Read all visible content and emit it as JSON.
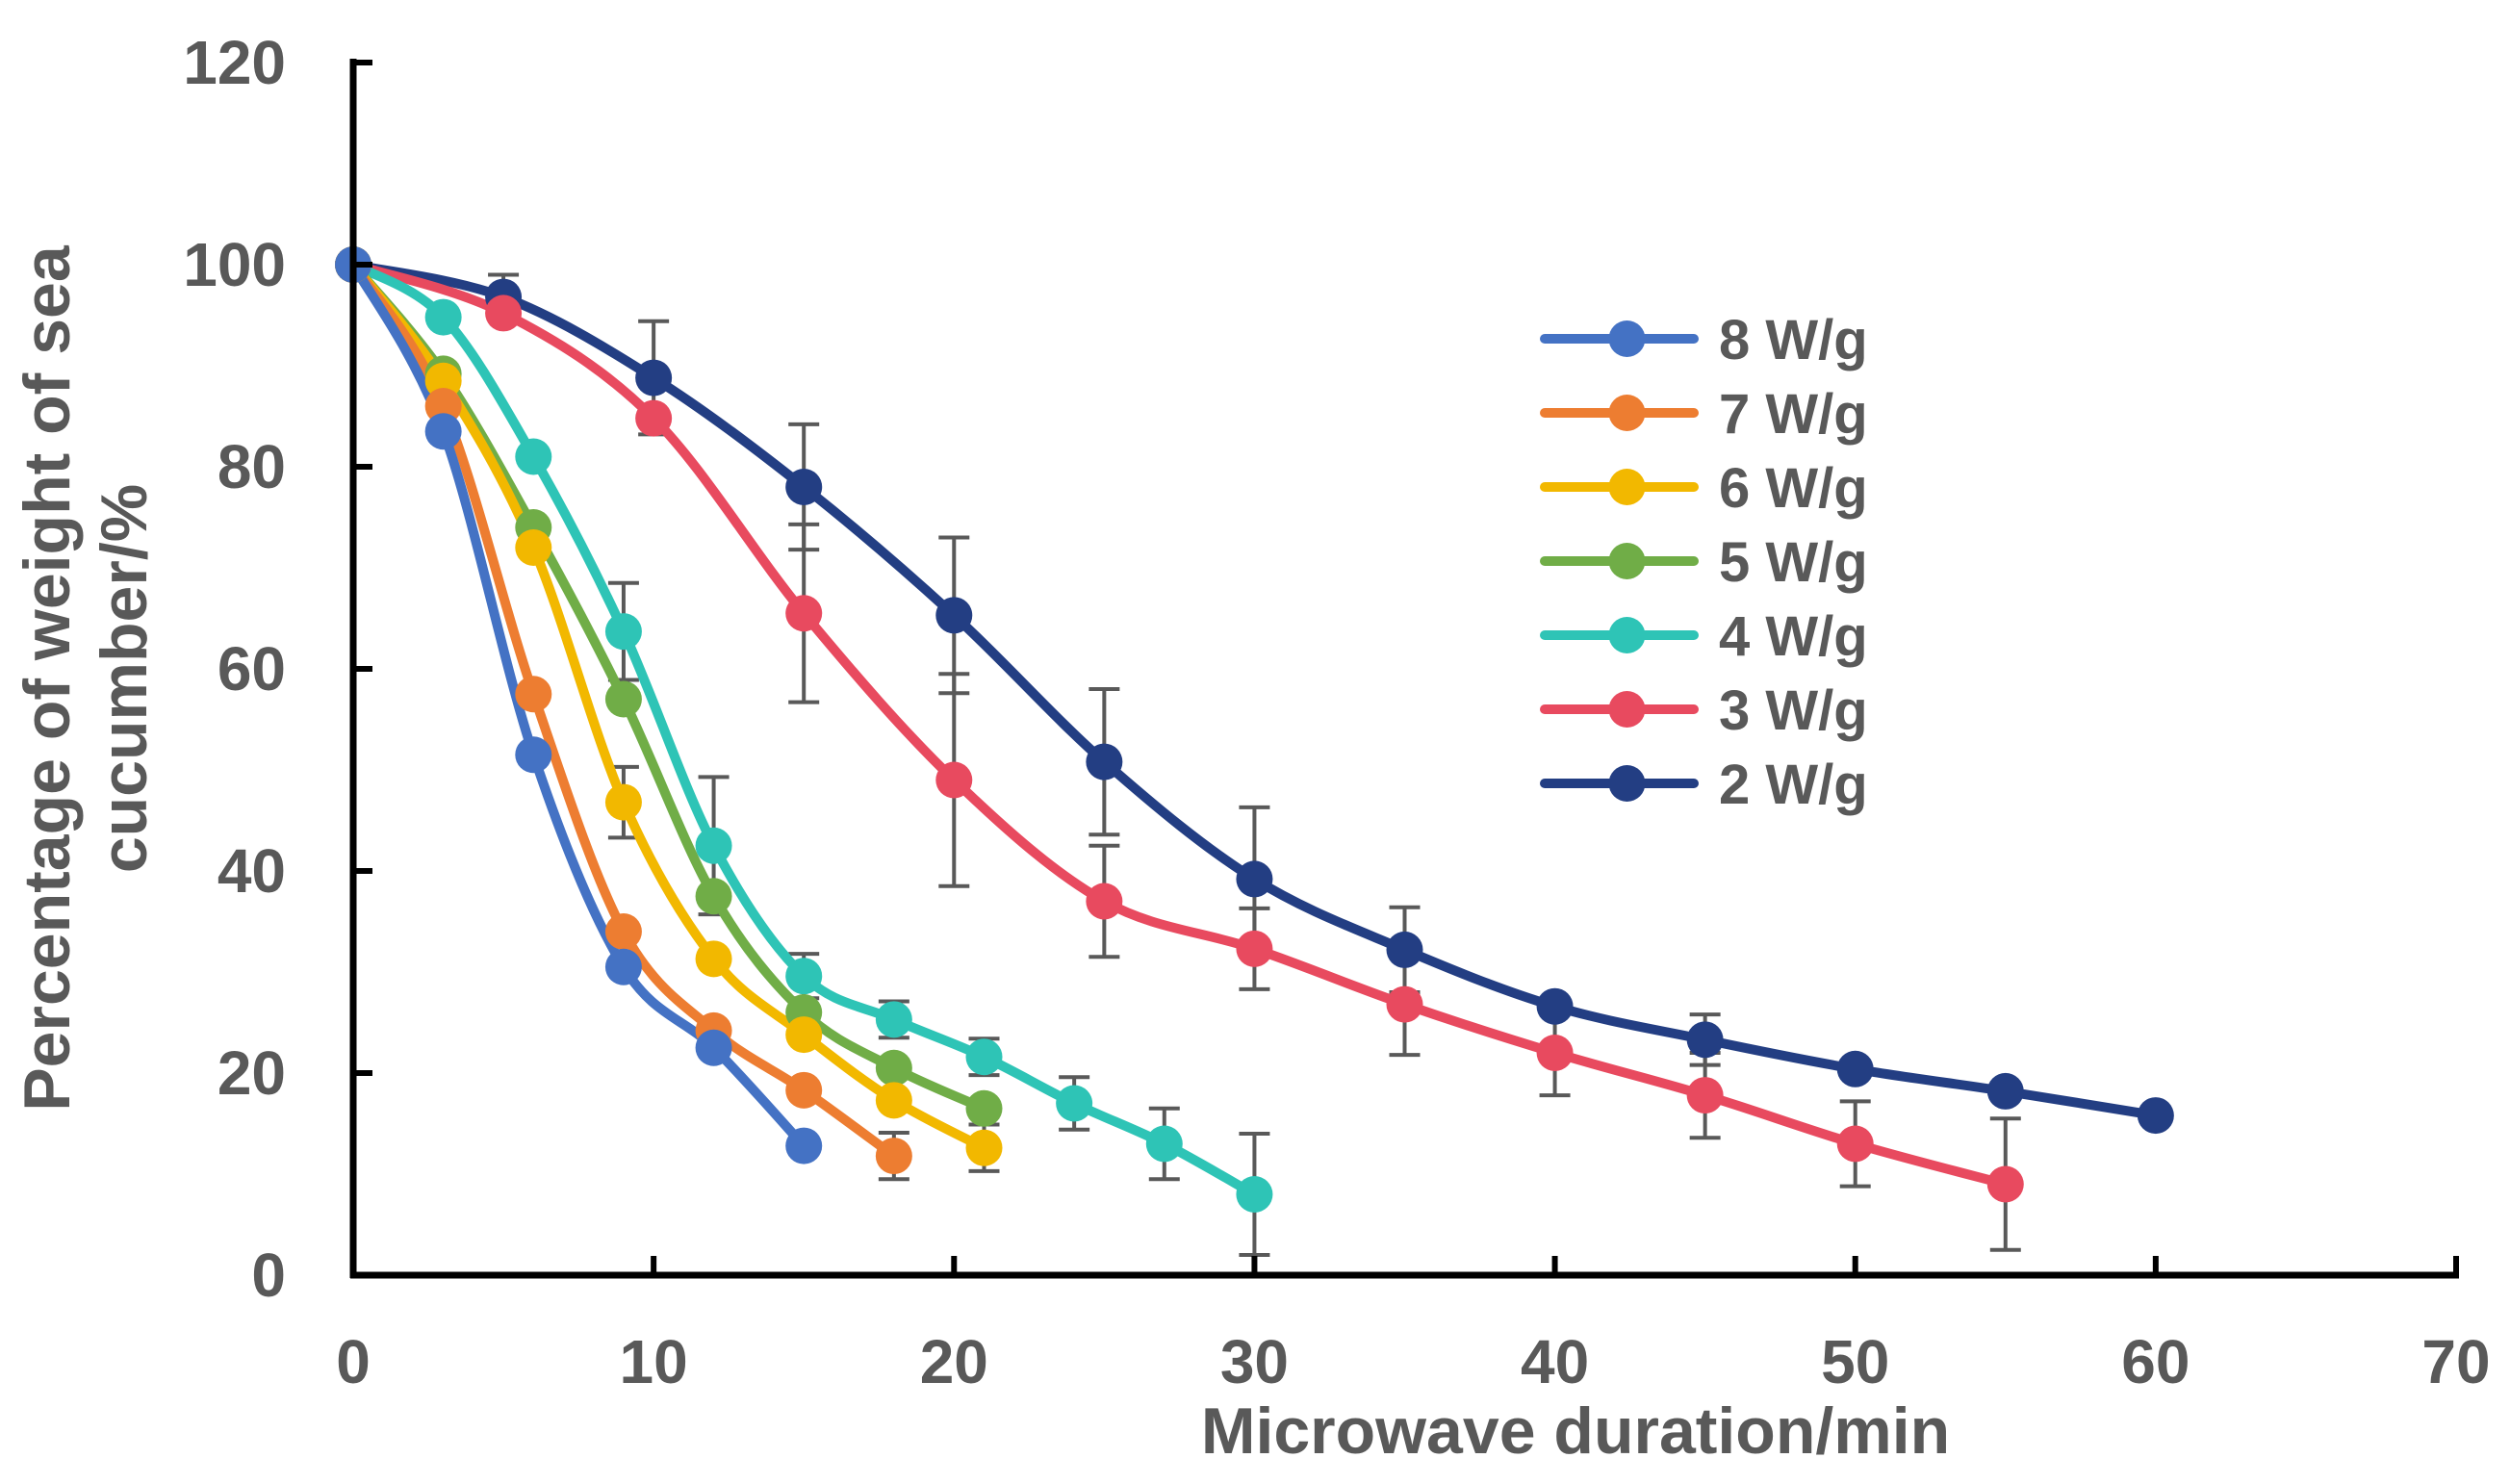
{
  "chart_data": {
    "type": "line",
    "title": "",
    "xlabel": "Microwave duration/min",
    "ylabel_lines": [
      "Percentage of weight of sea",
      "cucumber/%"
    ],
    "xlim": [
      0,
      70
    ],
    "ylim": [
      0,
      120
    ],
    "xticks": [
      0,
      10,
      20,
      30,
      40,
      50,
      60,
      70
    ],
    "yticks": [
      0,
      20,
      40,
      60,
      80,
      100,
      120
    ],
    "grid": false,
    "legend_position": "top-right",
    "series": [
      {
        "name": "8 W/g",
        "color": "#4472C4",
        "x": [
          0,
          3,
          6,
          9,
          12,
          15
        ],
        "y": [
          100,
          83.5,
          51.5,
          30.5,
          22.5,
          12.8
        ],
        "err": [
          0,
          0,
          0,
          0,
          0,
          0
        ]
      },
      {
        "name": "7 W/g",
        "color": "#ED7D31",
        "x": [
          0,
          3,
          6,
          9,
          12,
          15,
          18
        ],
        "y": [
          100,
          86,
          57.5,
          34,
          24.2,
          18.3,
          11.8
        ],
        "err": [
          0,
          0,
          0,
          0,
          0,
          0,
          2.3
        ]
      },
      {
        "name": "6 W/g",
        "color": "#F2B800",
        "x": [
          0,
          3,
          6,
          9,
          12,
          15,
          18,
          21
        ],
        "y": [
          100,
          88.5,
          72,
          46.8,
          31.3,
          23.8,
          17.3,
          12.6
        ],
        "err": [
          0,
          0,
          0,
          3.5,
          0,
          0,
          0,
          2.3
        ]
      },
      {
        "name": "5 W/g",
        "color": "#70AD47",
        "x": [
          0,
          3,
          6,
          9,
          12,
          15,
          18,
          21
        ],
        "y": [
          100,
          89.2,
          74,
          57,
          37.5,
          26,
          20.5,
          16.5
        ],
        "err": [
          0,
          0,
          0,
          0,
          0,
          0,
          0,
          0
        ]
      },
      {
        "name": "4 W/g",
        "color": "#2EC4B6",
        "x": [
          0,
          3,
          6,
          9,
          12,
          15,
          18,
          21,
          24,
          27,
          30
        ],
        "y": [
          100,
          94.8,
          81,
          63.7,
          42.5,
          29.6,
          25.3,
          21.6,
          17,
          13,
          8
        ],
        "err": [
          0,
          0,
          0,
          4.8,
          6.8,
          2.2,
          1.8,
          1.8,
          2.6,
          3.5,
          6
        ]
      },
      {
        "name": "3 W/g",
        "color": "#E84A5F",
        "x": [
          0,
          5,
          10,
          15,
          20,
          25,
          30,
          35,
          40,
          45,
          50,
          55
        ],
        "y": [
          100,
          95.2,
          84.8,
          65.5,
          49,
          37,
          32.3,
          26.8,
          22,
          17.8,
          13,
          9
        ],
        "err": [
          0,
          0,
          0,
          8.8,
          10.5,
          5.5,
          4,
          5,
          4.2,
          4.2,
          4.2,
          6.5
        ]
      },
      {
        "name": "2 W/g",
        "color": "#233E83",
        "x": [
          0,
          5,
          10,
          15,
          20,
          25,
          30,
          35,
          40,
          45,
          50,
          55,
          60
        ],
        "y": [
          100,
          96.8,
          88.8,
          78,
          65.3,
          50.8,
          39.2,
          32.2,
          26.6,
          23.3,
          20.4,
          18.2,
          15.8
        ],
        "err": [
          0,
          2.2,
          5.6,
          6.2,
          7.7,
          7.2,
          7.1,
          4.2,
          0,
          2.5,
          0,
          0,
          0
        ]
      }
    ]
  }
}
